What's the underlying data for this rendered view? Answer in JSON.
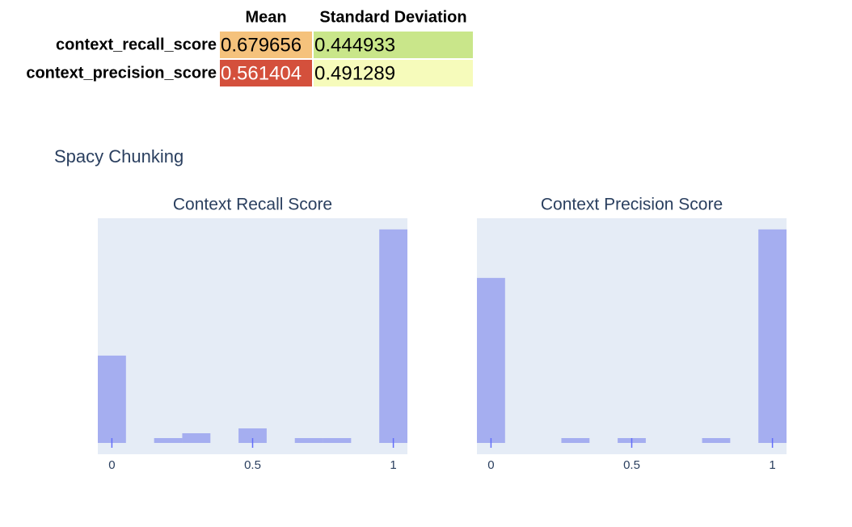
{
  "table": {
    "columns": [
      "Mean",
      "Standard Deviation"
    ],
    "rows": [
      {
        "label": "context_recall_score",
        "cells": [
          0.679656,
          0.444933
        ],
        "colors": [
          "#f5c27c",
          "#c9e68a"
        ],
        "text_colors": [
          "#000000",
          "#000000"
        ]
      },
      {
        "label": "context_precision_score",
        "cells": [
          0.561404,
          0.491289
        ],
        "colors": [
          "#d4503c",
          "#f6fbbb"
        ],
        "text_colors": [
          "#ffffff",
          "#000000"
        ]
      }
    ]
  },
  "figure_title": "Spacy Chunking",
  "chart_data": [
    {
      "type": "histogram",
      "title": "Context Recall Score",
      "color": "#a5aef0",
      "bins": [
        -0.05,
        0.05,
        0.15,
        0.25,
        0.35,
        0.45,
        0.55,
        0.65,
        0.75,
        0.85,
        0.95,
        1.05
      ],
      "values": [
        18,
        0,
        1,
        2,
        0,
        3,
        0,
        1,
        1,
        0,
        44
      ],
      "xlim": [
        -0.05,
        1.05
      ],
      "xticks": [
        0,
        0.5,
        1
      ],
      "ylim": [
        0,
        46.3
      ]
    },
    {
      "type": "histogram",
      "title": "Context Precision Score",
      "color": "#a5aef0",
      "bins": [
        -0.05,
        0.05,
        0.15,
        0.25,
        0.35,
        0.45,
        0.55,
        0.65,
        0.75,
        0.85,
        0.95,
        1.05
      ],
      "values": [
        34,
        0,
        0,
        1,
        0,
        1,
        0,
        0,
        1,
        0,
        44
      ],
      "xlim": [
        -0.05,
        1.05
      ],
      "xticks": [
        0,
        0.5,
        1
      ],
      "ylim": [
        0,
        46.3
      ]
    }
  ]
}
